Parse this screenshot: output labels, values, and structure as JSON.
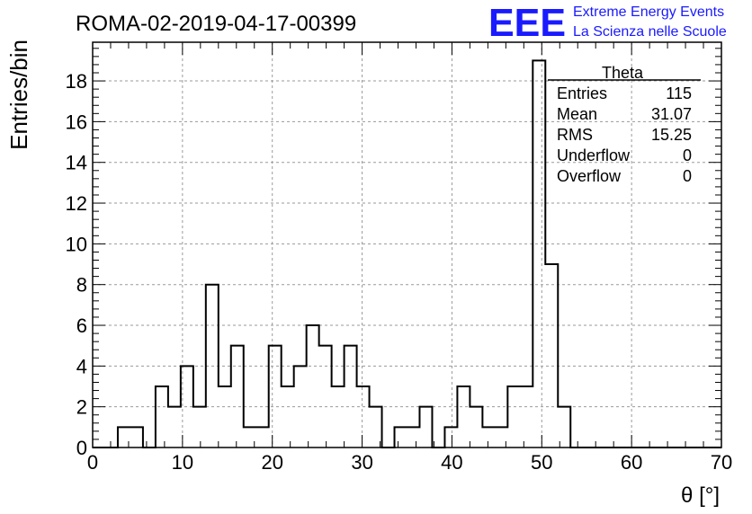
{
  "chart_data": {
    "type": "histogram",
    "title": "ROMA-02-2019-04-17-00399",
    "xlabel": "θ [°]",
    "ylabel": "Entries/bin",
    "xlim": [
      0,
      70
    ],
    "ylim": [
      0,
      19.9
    ],
    "x_ticks": [
      0,
      10,
      20,
      30,
      40,
      50,
      60,
      70
    ],
    "y_ticks": [
      0,
      2,
      4,
      6,
      8,
      10,
      12,
      14,
      16,
      18
    ],
    "grid": true,
    "bin_width": 1.4,
    "bin_edges_start": 0,
    "counts": [
      0,
      0,
      1,
      1,
      0,
      3,
      2,
      4,
      2,
      8,
      3,
      5,
      1,
      1,
      5,
      3,
      4,
      6,
      5,
      3,
      5,
      3,
      2,
      0,
      1,
      1,
      2,
      0,
      1,
      3,
      2,
      1,
      1,
      3,
      3,
      19,
      9,
      2,
      0,
      0,
      0,
      0,
      0,
      0,
      0,
      0,
      0,
      0,
      0,
      0
    ],
    "stats_box": {
      "title": "Theta",
      "rows": [
        {
          "label": "Entries",
          "value": "115"
        },
        {
          "label": "Mean",
          "value": "31.07"
        },
        {
          "label": "RMS",
          "value": "15.25"
        },
        {
          "label": "Underflow",
          "value": "0"
        },
        {
          "label": "Overflow",
          "value": "0"
        }
      ]
    }
  },
  "logo": {
    "mark": "EEE",
    "line1": "Extreme Energy Events",
    "line2": "La Scienza nelle Scuole",
    "color": "#1a1aff"
  }
}
